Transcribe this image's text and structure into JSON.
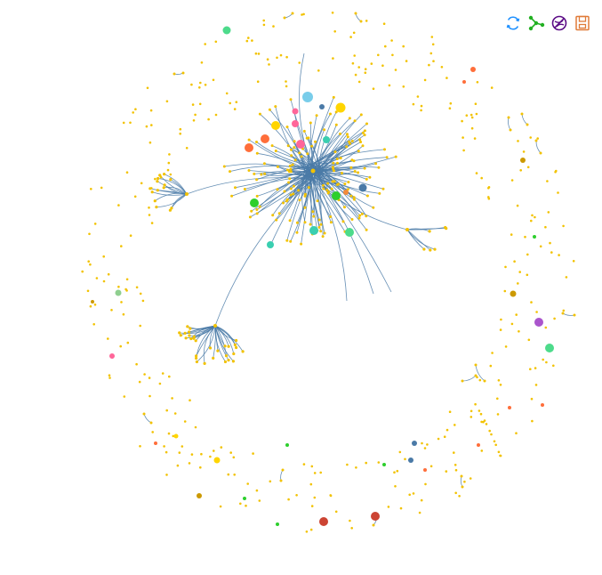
{
  "toolbox": {
    "items": [
      {
        "icon": "refresh-icon",
        "color": "#1e90ff"
      },
      {
        "icon": "graph-layout-icon",
        "color": "#22b022"
      },
      {
        "icon": "disable-layout-icon",
        "color": "#5b0b86"
      },
      {
        "icon": "save-image-icon",
        "color": "#e07b39"
      }
    ]
  },
  "graph": {
    "type": "network",
    "edge_color": "#4a7aa7",
    "node_color": "#f2c200",
    "highlight_colors": [
      "#79cdea",
      "#ffd500",
      "#ff6699",
      "#4a7aa7",
      "#ff6e3a",
      "#3acfb0",
      "#2dcf2d",
      "#4ddb8b",
      "#f28a3a",
      "#aa55cc",
      "#8fcf8f",
      "#cc9900",
      "#cc4433"
    ]
  }
}
